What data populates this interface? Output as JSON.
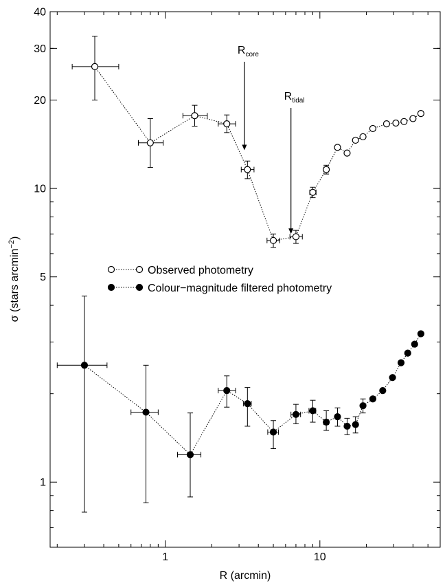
{
  "chart_data": {
    "type": "scatter",
    "title": "",
    "xlabel": "R (arcmin)",
    "ylabel_main": "σ (stars arcmin",
    "ylabel_sup": "−2",
    "ylabel_close": ")",
    "x_scale": "log",
    "y_scale": "log",
    "xlim": [
      0.18,
      60
    ],
    "ylim": [
      0.6,
      40
    ],
    "x_ticks": [
      {
        "value": 1,
        "label": "1"
      },
      {
        "value": 10,
        "label": "10"
      }
    ],
    "y_ticks": [
      {
        "value": 1,
        "label": "1"
      },
      {
        "value": 5,
        "label": "5"
      },
      {
        "value": 10,
        "label": "10"
      },
      {
        "value": 20,
        "label": "20"
      },
      {
        "value": 30,
        "label": "30"
      },
      {
        "value": 40,
        "label": "40"
      }
    ],
    "grid": false,
    "legend": {
      "position": "center-left"
    },
    "series": [
      {
        "name": "Observed photometry",
        "marker": "open-circle",
        "line": "dotted",
        "points": [
          {
            "x": 0.35,
            "y": 26.0,
            "xerr": [
              0.25,
              0.5
            ],
            "yerr": [
              20.0,
              33.0
            ]
          },
          {
            "x": 0.8,
            "y": 14.3,
            "xerr": [
              0.67,
              0.97
            ],
            "yerr": [
              11.8,
              17.3
            ]
          },
          {
            "x": 1.55,
            "y": 17.7,
            "xerr": [
              1.3,
              1.87
            ],
            "yerr": [
              16.3,
              19.2
            ]
          },
          {
            "x": 2.5,
            "y": 16.6,
            "xerr": [
              2.2,
              2.85
            ],
            "yerr": [
              15.5,
              17.8
            ]
          },
          {
            "x": 3.4,
            "y": 11.6,
            "xerr": [
              3.1,
              3.75
            ],
            "yerr": [
              10.8,
              12.4
            ]
          },
          {
            "x": 5.0,
            "y": 6.65,
            "xerr": [
              4.55,
              5.5
            ],
            "yerr": [
              6.3,
              7.0
            ]
          },
          {
            "x": 7.0,
            "y": 6.85,
            "xerr": [
              6.4,
              7.7
            ],
            "yerr": [
              6.5,
              7.2
            ]
          },
          {
            "x": 9.0,
            "y": 9.7,
            "xerr": [
              8.6,
              9.45
            ],
            "yerr": [
              9.3,
              10.1
            ]
          },
          {
            "x": 11.0,
            "y": 11.6,
            "xerr": [
              10.6,
              11.4
            ],
            "yerr": [
              11.2,
              12.0
            ]
          },
          {
            "x": 13.0,
            "y": 13.8
          },
          {
            "x": 15.0,
            "y": 13.2
          },
          {
            "x": 17.0,
            "y": 14.6
          },
          {
            "x": 19.0,
            "y": 15.0
          },
          {
            "x": 22.0,
            "y": 16.0
          },
          {
            "x": 27.0,
            "y": 16.6
          },
          {
            "x": 31.0,
            "y": 16.7
          },
          {
            "x": 35.0,
            "y": 16.9
          },
          {
            "x": 40.0,
            "y": 17.3
          },
          {
            "x": 45.0,
            "y": 18.0
          }
        ]
      },
      {
        "name": "Colour−magnitude filtered photometry",
        "marker": "filled-circle",
        "line": "dotted",
        "points": [
          {
            "x": 0.3,
            "y": 2.5,
            "xerr": [
              0.2,
              0.42
            ],
            "yerr": [
              0.79,
              4.3
            ]
          },
          {
            "x": 0.75,
            "y": 1.73,
            "xerr": [
              0.6,
              0.9
            ],
            "yerr": [
              0.85,
              2.5
            ]
          },
          {
            "x": 1.45,
            "y": 1.24,
            "xerr": [
              1.2,
              1.7
            ],
            "yerr": [
              0.89,
              1.72
            ]
          },
          {
            "x": 2.5,
            "y": 2.05,
            "xerr": [
              2.2,
              2.85
            ],
            "yerr": [
              1.8,
              2.3
            ]
          },
          {
            "x": 3.4,
            "y": 1.85,
            "xerr": [
              3.2,
              3.6
            ],
            "yerr": [
              1.55,
              2.1
            ]
          },
          {
            "x": 5.0,
            "y": 1.48,
            "xerr": [
              4.6,
              5.4
            ],
            "yerr": [
              1.3,
              1.62
            ]
          },
          {
            "x": 7.0,
            "y": 1.7,
            "xerr": [
              6.5,
              7.5
            ],
            "yerr": [
              1.58,
              1.84
            ]
          },
          {
            "x": 9.0,
            "y": 1.75,
            "xerr": [
              8.5,
              9.4
            ],
            "yerr": [
              1.6,
              1.9
            ]
          },
          {
            "x": 11.0,
            "y": 1.6,
            "xerr": [
              10.6,
              11.4
            ],
            "yerr": [
              1.5,
              1.75
            ]
          },
          {
            "x": 13.0,
            "y": 1.67,
            "xerr": [
              12.6,
              13.4
            ],
            "yerr": [
              1.55,
              1.79
            ]
          },
          {
            "x": 15.0,
            "y": 1.55,
            "xerr": [
              14.6,
              15.4
            ],
            "yerr": [
              1.45,
              1.65
            ]
          },
          {
            "x": 17.0,
            "y": 1.57,
            "xerr": [
              16.6,
              17.4
            ],
            "yerr": [
              1.47,
              1.67
            ]
          },
          {
            "x": 19.0,
            "y": 1.82,
            "xerr": [
              18.6,
              19.4
            ],
            "yerr": [
              1.72,
              1.92
            ]
          },
          {
            "x": 22.0,
            "y": 1.92
          },
          {
            "x": 25.5,
            "y": 2.05
          },
          {
            "x": 29.5,
            "y": 2.27
          },
          {
            "x": 33.5,
            "y": 2.55
          },
          {
            "x": 37.0,
            "y": 2.75
          },
          {
            "x": 41.0,
            "y": 2.95
          },
          {
            "x": 45.0,
            "y": 3.2
          }
        ]
      }
    ],
    "annotations": [
      {
        "text": "R",
        "sub": "core",
        "arrow_x": 3.25,
        "arrow_top": 27.0,
        "arrow_bottom": 13.5
      },
      {
        "text": "R",
        "sub": "tidal",
        "arrow_x": 6.5,
        "arrow_top": 18.8,
        "arrow_bottom": 7.0
      }
    ]
  }
}
